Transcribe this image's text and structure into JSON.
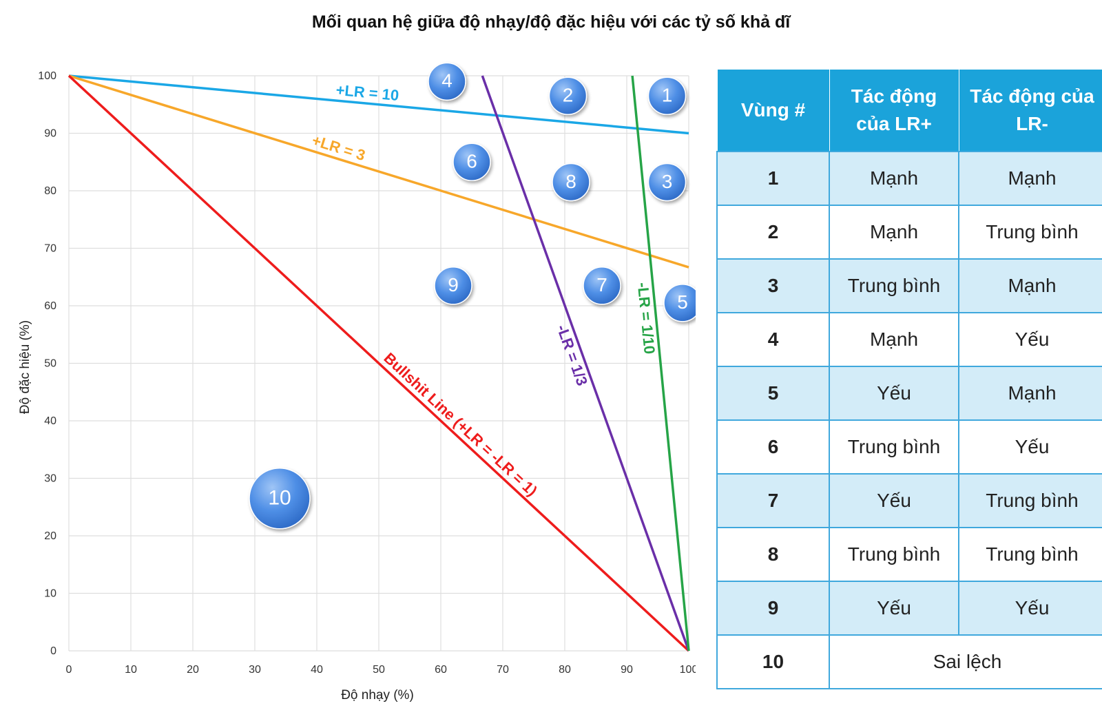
{
  "title": "Mối quan hệ giữa độ nhạy/độ đặc hiệu với các tỷ số khả dĩ",
  "chart_data": {
    "type": "line",
    "xlabel": "Độ nhạy (%)",
    "ylabel": "Độ đặc hiệu (%)",
    "xlim": [
      0,
      100
    ],
    "ylim": [
      0,
      100
    ],
    "xticks": [
      0,
      10,
      20,
      30,
      40,
      50,
      60,
      70,
      80,
      90,
      100
    ],
    "yticks": [
      0,
      10,
      20,
      30,
      40,
      50,
      60,
      70,
      80,
      90,
      100
    ],
    "grid": true,
    "series": [
      {
        "name": "+LR = 10",
        "color": "#1AA7E6",
        "x": [
          0,
          100
        ],
        "y": [
          100,
          90
        ]
      },
      {
        "name": "+LR = 3",
        "color": "#F7A72A",
        "x": [
          0,
          100
        ],
        "y": [
          100,
          66.7
        ]
      },
      {
        "name": "Bullshit Line (+LR = -LR = 1)",
        "color": "#EE1C1C",
        "x": [
          0,
          100
        ],
        "y": [
          100,
          0
        ]
      },
      {
        "name": "-LR = 1/3",
        "color": "#6A2FA8",
        "x": [
          66.7,
          100
        ],
        "y": [
          100,
          0
        ]
      },
      {
        "name": "-LR = 1/10",
        "color": "#26A447",
        "x": [
          90.9,
          100
        ],
        "y": [
          100,
          0
        ]
      }
    ],
    "regions": [
      {
        "label": "1",
        "x": 96.5,
        "y": 96.5
      },
      {
        "label": "2",
        "x": 80.5,
        "y": 96.5
      },
      {
        "label": "3",
        "x": 96.5,
        "y": 81.5
      },
      {
        "label": "4",
        "x": 61,
        "y": 99
      },
      {
        "label": "5",
        "x": 99,
        "y": 60.5
      },
      {
        "label": "6",
        "x": 65,
        "y": 85
      },
      {
        "label": "7",
        "x": 86,
        "y": 63.5
      },
      {
        "label": "8",
        "x": 81,
        "y": 81.5
      },
      {
        "label": "9",
        "x": 62,
        "y": 63.5
      },
      {
        "label": "10",
        "x": 34,
        "y": 26.5
      }
    ]
  },
  "table": {
    "headers": [
      "Vùng #",
      "Tác động của LR+",
      "Tác động của LR-"
    ],
    "rows": [
      {
        "zone": "1",
        "lr_pos": "Mạnh",
        "lr_neg": "Mạnh"
      },
      {
        "zone": "2",
        "lr_pos": "Mạnh",
        "lr_neg": "Trung bình"
      },
      {
        "zone": "3",
        "lr_pos": "Trung bình",
        "lr_neg": "Mạnh"
      },
      {
        "zone": "4",
        "lr_pos": "Mạnh",
        "lr_neg": "Yếu"
      },
      {
        "zone": "5",
        "lr_pos": "Yếu",
        "lr_neg": "Mạnh"
      },
      {
        "zone": "6",
        "lr_pos": "Trung bình",
        "lr_neg": "Yếu"
      },
      {
        "zone": "7",
        "lr_pos": "Yếu",
        "lr_neg": "Trung bình"
      },
      {
        "zone": "8",
        "lr_pos": "Trung bình",
        "lr_neg": "Trung bình"
      },
      {
        "zone": "9",
        "lr_pos": "Yếu",
        "lr_neg": "Yếu"
      },
      {
        "zone": "10",
        "combined": "Sai lệch"
      }
    ]
  }
}
